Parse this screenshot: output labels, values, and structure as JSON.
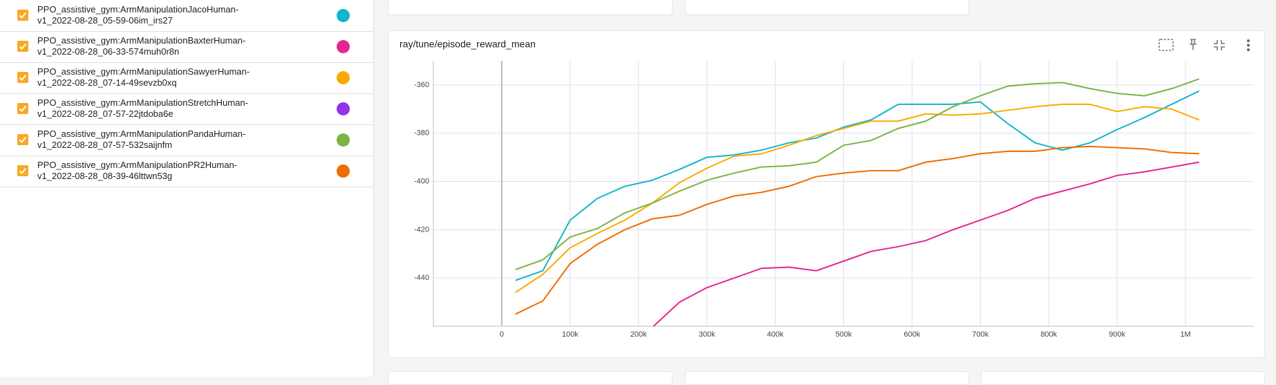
{
  "runs": [
    {
      "name": [
        "PPO_assistive_gym:ArmManipulationJacoHuman-",
        "v1_2022-08-28_05-59-06im_irs27"
      ],
      "color": "#12b5cb"
    },
    {
      "name": [
        "PPO_assistive_gym:ArmManipulationBaxterHuman-",
        "v1_2022-08-28_06-33-574muh0r8n"
      ],
      "color": "#e52592"
    },
    {
      "name": [
        "PPO_assistive_gym:ArmManipulationSawyerHuman-",
        "v1_2022-08-28_07-14-49sevzb0xq"
      ],
      "color": "#f9ab00"
    },
    {
      "name": [
        "PPO_assistive_gym:ArmManipulationStretchHuman-",
        "v1_2022-08-28_07-57-22jtdoba6e"
      ],
      "color": "#9334e6"
    },
    {
      "name": [
        "PPO_assistive_gym:ArmManipulationPandaHuman-",
        "v1_2022-08-28_07-57-532saijnfm"
      ],
      "color": "#7cb342"
    },
    {
      "name": [
        "PPO_assistive_gym:ArmManipulationPR2Human-",
        "v1_2022-08-28_08-39-46lttwn53g"
      ],
      "color": "#ef6c00"
    }
  ],
  "chart_data": {
    "type": "line",
    "title": "ray/tune/episode_reward_mean",
    "x": [
      20000,
      60000,
      100000,
      140000,
      180000,
      220000,
      260000,
      300000,
      340000,
      380000,
      420000,
      460000,
      500000,
      540000,
      580000,
      620000,
      660000,
      700000,
      740000,
      780000,
      820000,
      860000,
      900000,
      940000,
      980000,
      1020000
    ],
    "series": [
      {
        "color": "#12b5cb",
        "values": [
          -441,
          -437,
          -416,
          -407,
          -402,
          -399.5,
          -395,
          -390,
          -389,
          -387,
          -384,
          -382,
          -377.5,
          -374.5,
          -368,
          -368,
          -368,
          -367,
          -376,
          -384,
          -387,
          -384,
          -378.5,
          -373.5,
          -368,
          -362.5
        ]
      },
      {
        "color": "#e52592",
        "values": [
          null,
          null,
          null,
          null,
          null,
          -460.5,
          -450,
          -444,
          -440,
          -436,
          -435.5,
          -437,
          -433,
          -429,
          -427,
          -424.5,
          -420,
          -416,
          -412,
          -407,
          -404,
          -401,
          -397.5,
          -396,
          -394,
          -392
        ]
      },
      {
        "color": "#f9ab00",
        "values": [
          -446,
          -438.5,
          -427.5,
          -421.5,
          -416,
          -409,
          -400.5,
          -394.5,
          -389.5,
          -388.5,
          -385,
          -381,
          -378,
          -375,
          -375,
          -372,
          -372.5,
          -372,
          -370.5,
          -369,
          -368,
          -368,
          -371,
          -369,
          -370,
          -374.5
        ]
      },
      {
        "color": "#7cb342",
        "values": [
          -436.5,
          -432.5,
          -423,
          -419.5,
          -413,
          -409,
          -404,
          -399.5,
          -396.5,
          -394,
          -393.5,
          -392,
          -385,
          -383,
          -378,
          -375,
          -369,
          -364.5,
          -360.5,
          -359.5,
          -359,
          -361.5,
          -363.5,
          -364.5,
          -361.5,
          -357.5
        ]
      },
      {
        "color": "#ef6c00",
        "values": [
          -455,
          -449.5,
          -434,
          -426,
          -420,
          -415.5,
          -414,
          -409.5,
          -406,
          -404.5,
          -402,
          -398,
          -396.5,
          -395.5,
          -395.5,
          -392,
          -390.5,
          -388.5,
          -387.5,
          -387.5,
          -386,
          -385.5,
          -386,
          -386.5,
          -388,
          -388.5
        ]
      }
    ],
    "xlim": [
      -100000,
      1100000
    ],
    "ylim": [
      -460,
      -350
    ],
    "xticks": [
      0,
      {
        "value": 100000,
        "label": "100k"
      },
      {
        "value": 200000,
        "label": "200k"
      },
      {
        "value": 300000,
        "label": "300k"
      },
      {
        "value": 400000,
        "label": "400k"
      },
      {
        "value": 500000,
        "label": "500k"
      },
      {
        "value": 600000,
        "label": "600k"
      },
      {
        "value": 700000,
        "label": "700k"
      },
      {
        "value": 800000,
        "label": "800k"
      },
      {
        "value": 900000,
        "label": "900k"
      },
      {
        "value": 1000000,
        "label": "1M"
      }
    ],
    "yticks": [
      -440,
      -420,
      -400,
      -380,
      -360
    ],
    "grid": true
  }
}
